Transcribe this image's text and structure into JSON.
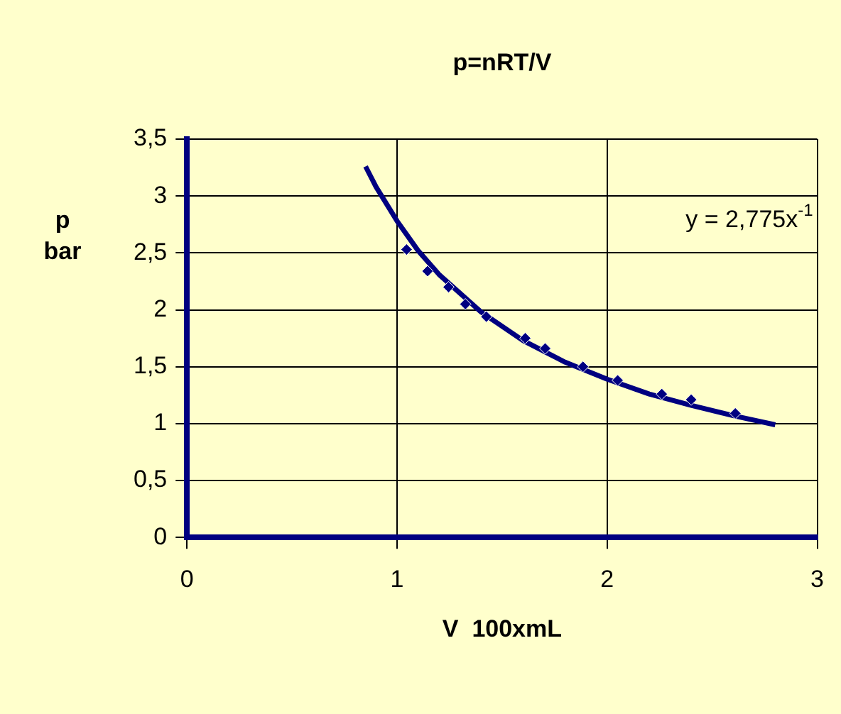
{
  "chart_data": {
    "type": "scatter",
    "title": "p=nRT/V",
    "xlabel": "V  100xmL",
    "ylabel": "p bar",
    "series": [
      {
        "color": "#000080",
        "marker": "diamond",
        "x": [
          1.045,
          1.145,
          1.245,
          1.325,
          1.425,
          1.61,
          1.705,
          1.885,
          2.05,
          2.26,
          2.4,
          2.61
        ],
        "values": [
          2.53,
          2.34,
          2.2,
          2.05,
          1.94,
          1.75,
          1.66,
          1.5,
          1.38,
          1.26,
          1.21,
          1.09
        ]
      },
      {
        "type": "line",
        "color": "#000080",
        "marker": "none",
        "x": [
          0.85,
          0.9,
          1,
          1.1,
          1.2,
          1.4,
          1.6,
          1.8,
          2,
          2.2,
          2.4,
          2.6,
          2.8
        ],
        "values": [
          3.26,
          3.08,
          2.78,
          2.52,
          2.31,
          1.98,
          1.73,
          1.54,
          1.39,
          1.26,
          1.16,
          1.07,
          0.99
        ]
      }
    ],
    "annotations": [
      "y = 2,775x$^{-1}$"
    ],
    "xlim": [
      0,
      3
    ],
    "xticks": [
      0,
      1,
      2,
      3
    ],
    "ylim": [
      0,
      3.5
    ],
    "yticks": [
      0,
      {
        "value": 0.5,
        "label": "0,5"
      },
      1,
      {
        "value": 1.5,
        "label": "1,5"
      },
      2,
      {
        "value": 2.5,
        "label": "2,5"
      },
      3,
      {
        "value": 3.5,
        "label": "3,5"
      }
    ],
    "grid": true,
    "legend": false
  }
}
